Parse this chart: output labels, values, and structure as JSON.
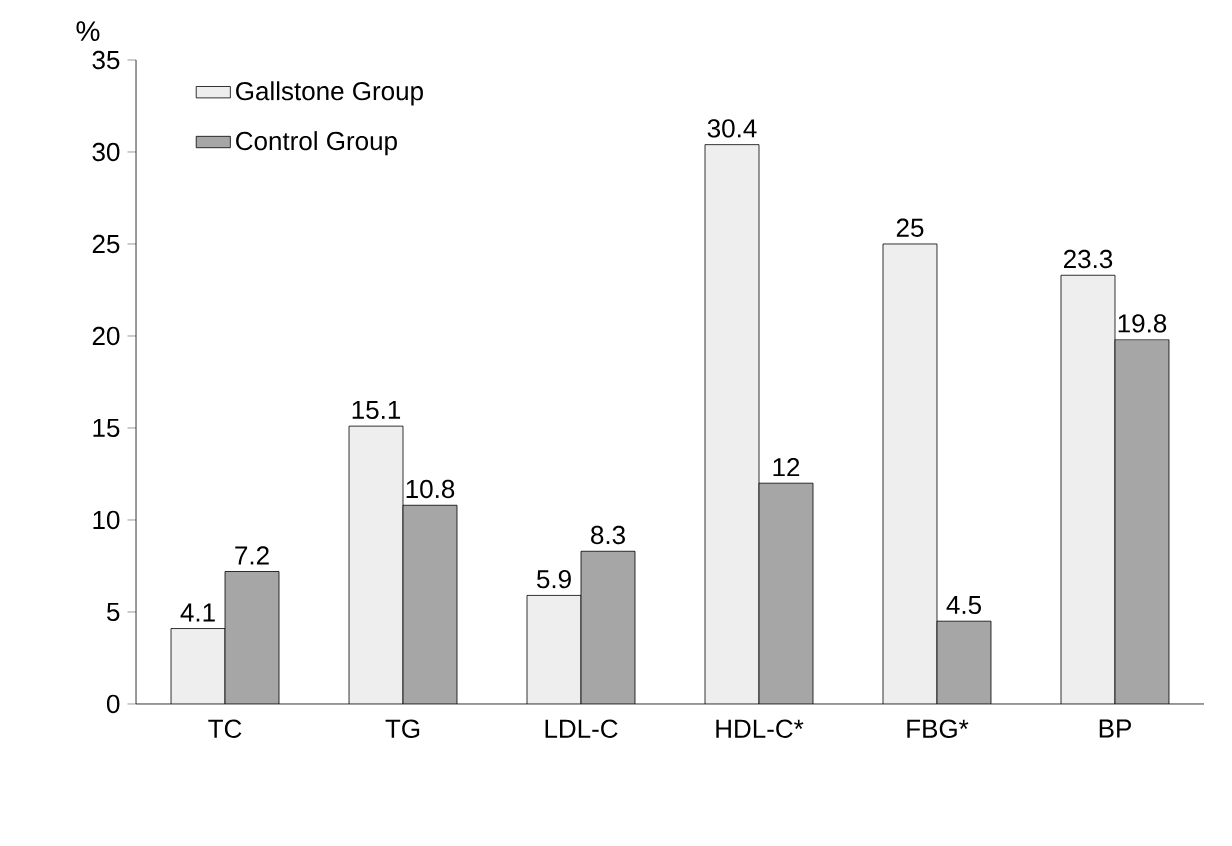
{
  "chart_data": {
    "type": "bar",
    "ylabel": "%",
    "categories": [
      "TC",
      "TG",
      "LDL-C",
      "HDL-C*",
      "FBG*",
      "BP"
    ],
    "series": [
      {
        "name": "Gallstone Group",
        "color": "#eeeeee",
        "values": [
          4.1,
          15.1,
          5.9,
          30.4,
          25,
          23.3
        ]
      },
      {
        "name": "Control Group",
        "color": "#a6a6a6",
        "values": [
          7.2,
          10.8,
          8.3,
          12,
          4.5,
          19.8
        ]
      }
    ],
    "ylim": [
      0,
      35
    ],
    "yticks": [
      0,
      5,
      10,
      15,
      20,
      25,
      30,
      35
    ],
    "data_labels": true,
    "legend": "top left",
    "grid": false
  }
}
